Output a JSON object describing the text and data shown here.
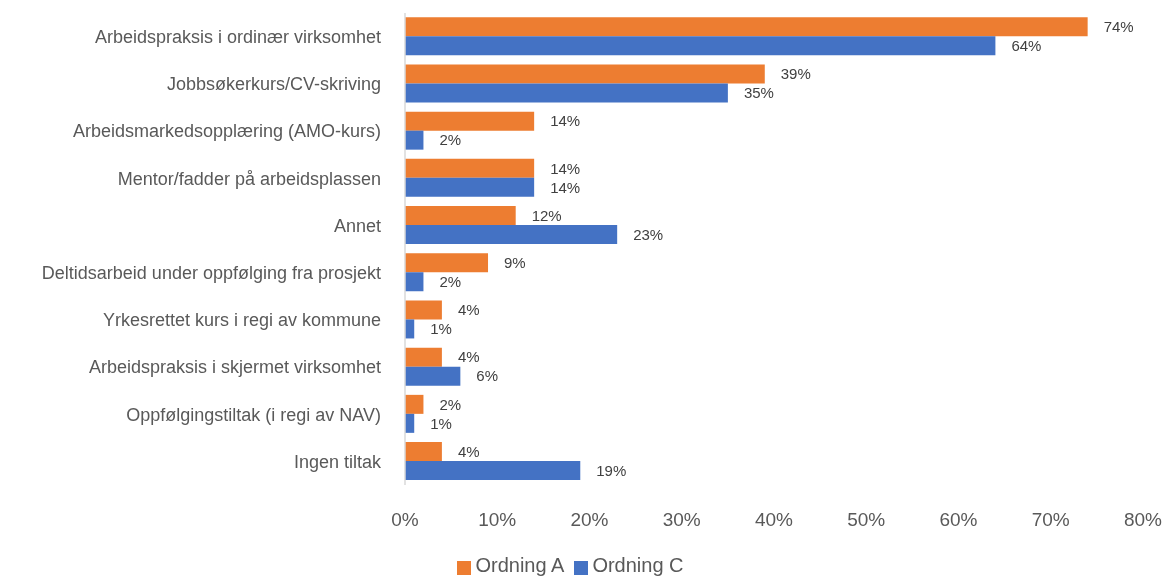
{
  "chart_data": {
    "type": "bar",
    "orientation": "horizontal",
    "categories": [
      "Arbeidspraksis i ordinær virksomhet",
      "Jobbsøkerkurs/CV-skriving",
      "Arbeidsmarkedsopplæring (AMO-kurs)",
      "Mentor/fadder på arbeidsplassen",
      "Annet",
      "Deltidsarbeid under oppfølging fra prosjekt",
      "Yrkesrettet kurs i regi av kommune",
      "Arbeidspraksis i skjermet virksomhet",
      "Oppfølgingstiltak (i regi av NAV)",
      "Ingen tiltak"
    ],
    "series": [
      {
        "name": "Ordning A",
        "color": "#ed7d31",
        "values": [
          74,
          39,
          14,
          14,
          12,
          9,
          4,
          4,
          2,
          4
        ],
        "value_labels": [
          "74%",
          "39%",
          "14%",
          "14%",
          "12%",
          "9%",
          "4%",
          "4%",
          "2%",
          "4%"
        ]
      },
      {
        "name": "Ordning C",
        "color": "#4472c4",
        "values": [
          64,
          35,
          2,
          14,
          23,
          2,
          1,
          6,
          1,
          19
        ],
        "value_labels": [
          "64%",
          "35%",
          "2%",
          "14%",
          "23%",
          "2%",
          "1%",
          "6%",
          "1%",
          "19%"
        ]
      }
    ],
    "xlim": [
      0,
      80
    ],
    "xticks": [
      {
        "value": 0,
        "label": "0%"
      },
      {
        "value": 10,
        "label": "10%"
      },
      {
        "value": 20,
        "label": "20%"
      },
      {
        "value": 30,
        "label": "30%"
      },
      {
        "value": 40,
        "label": "40%"
      },
      {
        "value": 50,
        "label": "50%"
      },
      {
        "value": 60,
        "label": "60%"
      },
      {
        "value": 70,
        "label": "70%"
      },
      {
        "value": 80,
        "label": "80%"
      }
    ],
    "legend": "bottom"
  }
}
